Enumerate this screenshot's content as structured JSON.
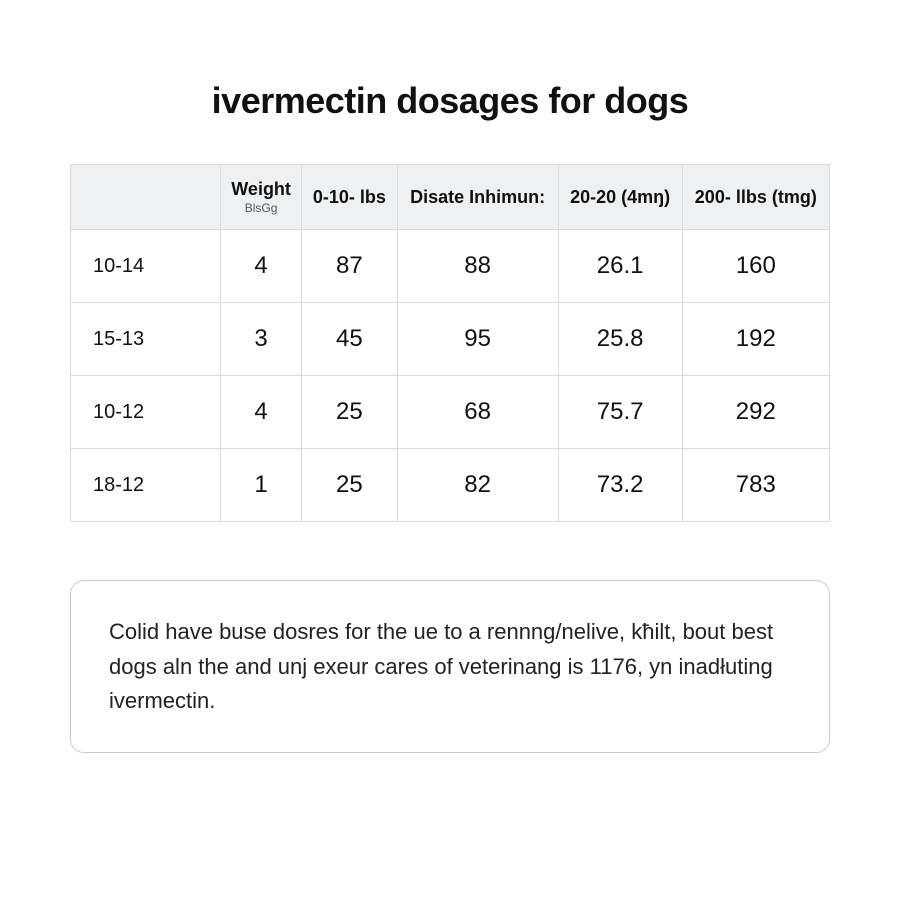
{
  "title": "ivermectin dosages for dogs",
  "table": {
    "columns": [
      {
        "label": "",
        "sub": ""
      },
      {
        "label": "Weight",
        "sub": "BlsGg"
      },
      {
        "label": "0-10- lbs",
        "sub": ""
      },
      {
        "label": "Disate Inhimun:",
        "sub": ""
      },
      {
        "label": "20-20 (4mŋ)",
        "sub": ""
      },
      {
        "label": "200- llbs (tmg)",
        "sub": ""
      }
    ],
    "rows": [
      {
        "label": "10-14",
        "cells": [
          "4",
          "87",
          "88",
          "26.1",
          "160"
        ]
      },
      {
        "label": "15-13",
        "cells": [
          "3",
          "45",
          "95",
          "25.8",
          "192"
        ]
      },
      {
        "label": "10-12",
        "cells": [
          "4",
          "25",
          "68",
          "75.7",
          "292"
        ]
      },
      {
        "label": "18-12",
        "cells": [
          "1",
          "25",
          "82",
          "73.2",
          "783"
        ]
      }
    ],
    "header_bg": "#eef0f2",
    "border_color": "#d9dcdf",
    "cell_fontsize": 24,
    "header_fontsize": 18,
    "rowlabel_fontsize": 20
  },
  "note": "Colid have buse dosres for the ue to a rennng/nelive, kħilt, bout best dogs aln the and unj exeur cares of veterinang is 1176, yn inadłuting ivermectin.",
  "colors": {
    "background": "#ffffff",
    "text": "#111111",
    "note_border": "#c9ccce"
  },
  "typography": {
    "title_fontsize": 36,
    "title_weight": 800,
    "note_fontsize": 22
  }
}
